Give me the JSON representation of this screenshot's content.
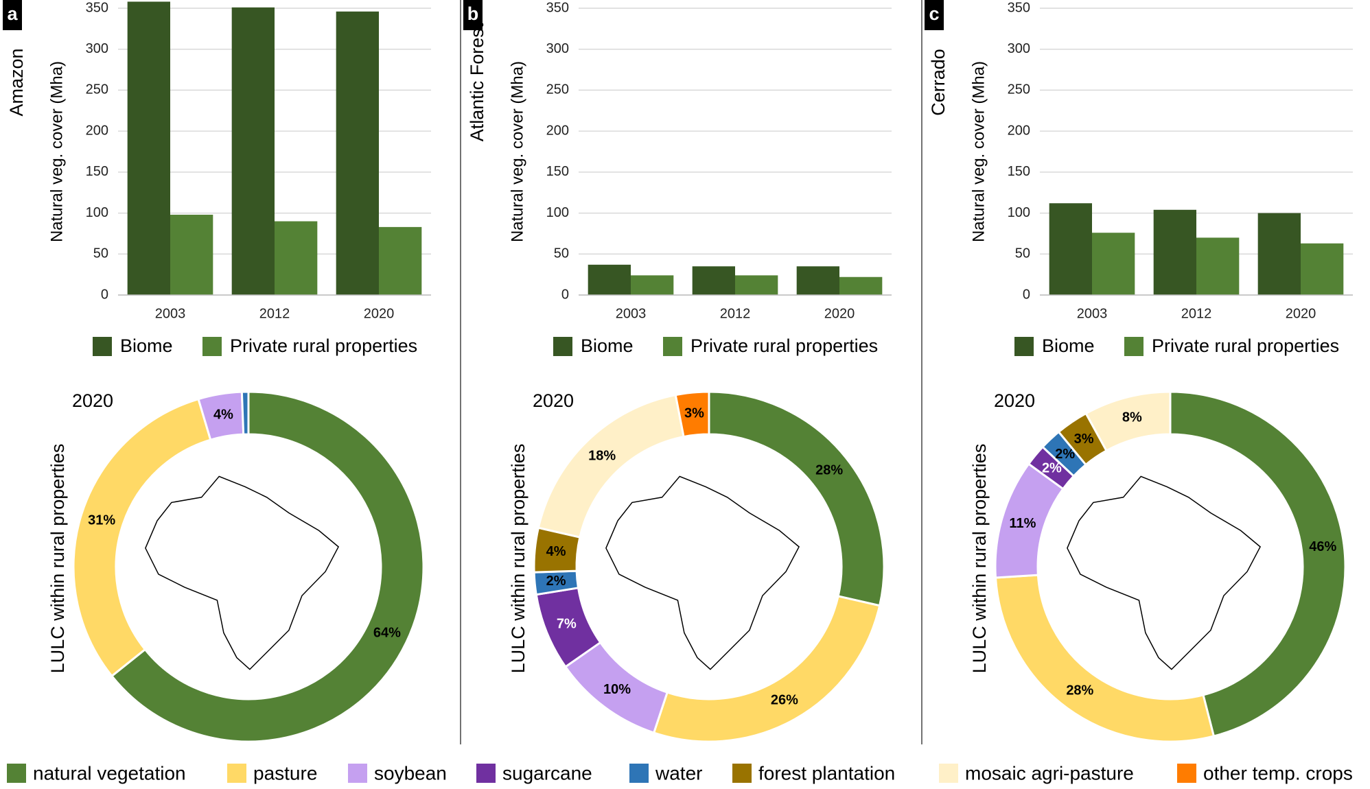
{
  "chart_data": [
    {
      "type": "bar",
      "panel": "a",
      "region": "Amazon",
      "y_label": "Natural veg. cover (Mha)",
      "categories": [
        "2003",
        "2012",
        "2020"
      ],
      "series": [
        {
          "name": "Biome",
          "color": "#375623",
          "values": [
            358,
            351,
            346
          ]
        },
        {
          "name": "Private rural properties",
          "color": "#548235",
          "values": [
            98,
            90,
            83
          ]
        }
      ],
      "ylim": [
        0,
        350
      ],
      "yticks": [
        0,
        50,
        100,
        150,
        200,
        250,
        300,
        350
      ],
      "grid": true
    },
    {
      "type": "bar",
      "panel": "b",
      "region": "Atlantic Forest",
      "y_label": "Natural veg. cover (Mha)",
      "categories": [
        "2003",
        "2012",
        "2020"
      ],
      "series": [
        {
          "name": "Biome",
          "color": "#375623",
          "values": [
            37,
            35,
            35
          ]
        },
        {
          "name": "Private rural properties",
          "color": "#548235",
          "values": [
            24,
            24,
            22
          ]
        }
      ],
      "ylim": [
        0,
        350
      ],
      "yticks": [
        0,
        50,
        100,
        150,
        200,
        250,
        300,
        350
      ],
      "grid": true
    },
    {
      "type": "bar",
      "panel": "c",
      "region": "Cerrado",
      "y_label": "Natural veg. cover (Mha)",
      "categories": [
        "2003",
        "2012",
        "2020"
      ],
      "series": [
        {
          "name": "Biome",
          "color": "#375623",
          "values": [
            112,
            104,
            100
          ]
        },
        {
          "name": "Private rural properties",
          "color": "#548235",
          "values": [
            76,
            70,
            63
          ]
        }
      ],
      "ylim": [
        0,
        350
      ],
      "yticks": [
        0,
        50,
        100,
        150,
        200,
        250,
        300,
        350
      ],
      "grid": true
    },
    {
      "type": "donut",
      "title": "2020",
      "y_label": "LULC within rural properties",
      "values": [
        64,
        31,
        4,
        null,
        0.6,
        null,
        null,
        null
      ],
      "value_labels": [
        "64%",
        "31%",
        "4%",
        null,
        null,
        null,
        null,
        null
      ]
    },
    {
      "type": "donut",
      "title": "2020",
      "y_label": "LULC within rural properties",
      "values": [
        28,
        26,
        10,
        7,
        2,
        4,
        18,
        3
      ],
      "value_labels": [
        "28%",
        "26%",
        "10%",
        "7%",
        "2%",
        "4%",
        "18%",
        "3%"
      ]
    },
    {
      "type": "donut",
      "title": "2020",
      "y_label": "LULC within rural properties",
      "values": [
        46,
        28,
        11,
        2,
        2,
        3,
        8,
        null
      ],
      "value_labels": [
        "46%",
        "28%",
        "11%",
        "2%",
        "2%",
        "3%",
        "8%",
        null
      ]
    }
  ],
  "legend": {
    "categories": [
      "natural vegetation",
      "pasture",
      "soybean",
      "sugarcane",
      "water",
      "forest plantation",
      "mosaic agri-pasture",
      "other temp. crops"
    ],
    "colors": [
      "#548235",
      "#ffd966",
      "#c5a0f0",
      "#7030a0",
      "#2e75b6",
      "#997300",
      "#fff0c8",
      "#ff7c00"
    ]
  }
}
